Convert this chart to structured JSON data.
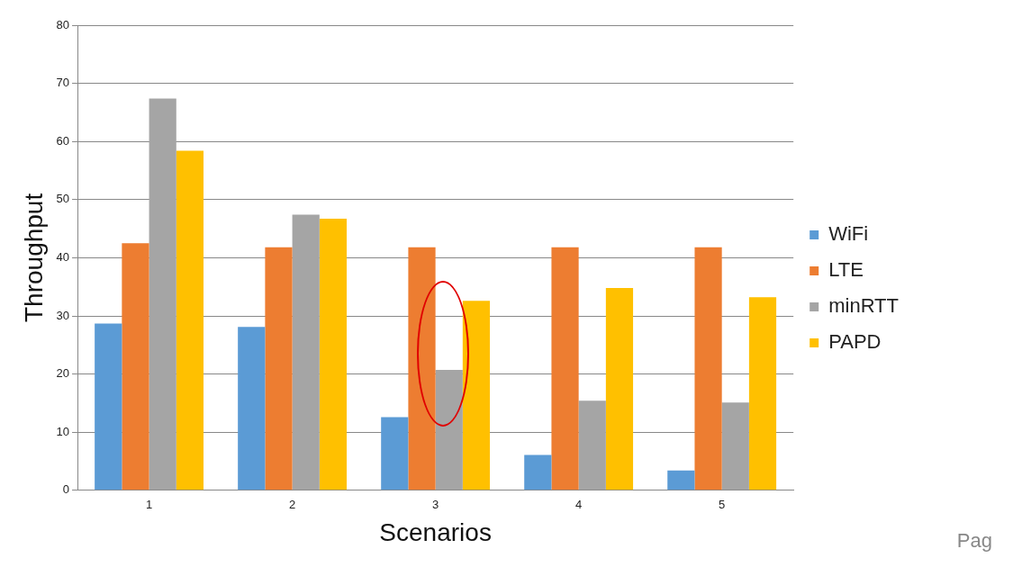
{
  "chart_data": {
    "type": "bar",
    "xlabel": "Scenarios",
    "ylabel": "Throughput",
    "categories": [
      "1",
      "2",
      "3",
      "4",
      "5"
    ],
    "series": [
      {
        "name": "WiFi",
        "color": "#5b9bd5",
        "values": [
          28.7,
          28.1,
          12.6,
          6.1,
          3.4
        ]
      },
      {
        "name": "LTE",
        "color": "#ed7d31",
        "values": [
          42.5,
          41.8,
          41.8,
          41.8,
          41.8
        ]
      },
      {
        "name": "minRTT",
        "color": "#a5a5a5",
        "values": [
          67.4,
          47.4,
          20.7,
          15.4,
          15.1
        ]
      },
      {
        "name": "PAPD",
        "color": "#ffc000",
        "values": [
          58.4,
          46.7,
          32.6,
          34.8,
          33.2
        ]
      }
    ],
    "ylim": [
      0,
      80
    ],
    "yticks": [
      0,
      10,
      20,
      30,
      40,
      50,
      60,
      70,
      80
    ],
    "grid": "y",
    "legend": "right",
    "annotations": [
      "Pag"
    ]
  }
}
